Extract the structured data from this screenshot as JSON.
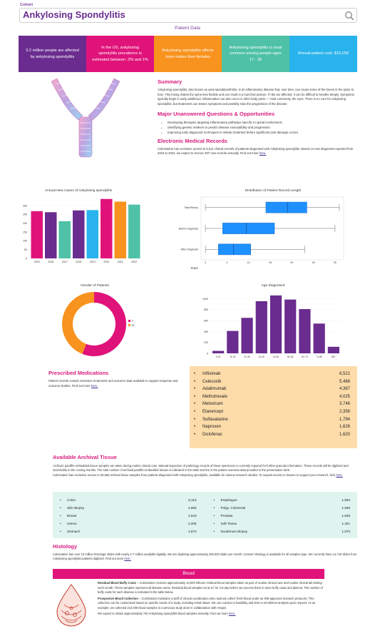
{
  "header": {
    "cohort_label": "Cohort",
    "title": "Ankylosing Spondylitis",
    "patient_data_link": "Patient Data"
  },
  "stats": [
    {
      "text": "3.2 million people are affected by ankylosing spondylitis",
      "color": "#6a2c8f"
    },
    {
      "text": "In the US, ankylosing spondylitis prevalence is estimated between .2% and 1%",
      "color": "#e0137a"
    },
    {
      "text": "Ankylosing spondylitis affects more males than females",
      "color": "#f7931e"
    },
    {
      "text": "Ankylosing spondylitis is most common among people ages 17 - 35",
      "color": "#4fc1a6"
    },
    {
      "text": "Annual patient cost: $10,250",
      "color": "#29b3ec"
    }
  ],
  "summary": {
    "heading": "Summary",
    "body": "Ankylosing spondylitis, also known as axial spondyloarthritis, is an inflammatory disease that, over time, can cause some of the bones in the spine to fuse. This fusing makes the spine less flexible and can result in a hunched posture. If ribs are affected, it can be difficult to breathe deeply. Symptoms typically begin in early adulthood. Inflammation can also occur in other body parts — most commonly, the eyes. There is no cure for ankylosing spondylitis, but treatments can lessen symptoms and possibly slow the progression of the disease."
  },
  "questions": {
    "heading": "Major Unanswered Questions & Opportunities",
    "items": [
      "Developing therapies targeting inflammatory pathways specific to spinal involvement.",
      "Identifying genetic markers to predict disease susceptibility and progression.",
      "Improving early diagnostic techniques to initiate treatment before significant joint damage occurs."
    ]
  },
  "emr": {
    "heading": "Electronic Medical Records",
    "body": "Culmination has exclusive access to 5,611 clinical records of patients diagnosed with Ankylosing spondylitis. Based on new diagnoses reported from 2015 to 2022, we expect to receive 307 new records annually. Find out more",
    "link": "here."
  },
  "colors": {
    "magenta": "#e0137a",
    "purple": "#6a2c8f",
    "orange": "#f7931e",
    "teal": "#4fc1a6",
    "blue": "#29b3ec",
    "box_blue": "#1e90ff"
  },
  "charts": {
    "annual": {
      "type": "bar",
      "title": "Annual New Cases of Ankylosing spondylitis",
      "categories": [
        "2015",
        "2016",
        "2017",
        "2018",
        "2019",
        "2020",
        "2021",
        "2022"
      ],
      "values": [
        268,
        262,
        211,
        272,
        274,
        337,
        322,
        305
      ],
      "colors": [
        "#e0137a",
        "#6a2c8f",
        "#4fc1a6",
        "#6a2c8f",
        "#29b3ec",
        "#e0137a",
        "#f7931e",
        "#4fc1a6"
      ],
      "yticks": [
        0,
        50,
        100,
        150,
        200,
        250,
        300
      ],
      "ylim": [
        0,
        340
      ]
    },
    "distribution": {
      "type": "box",
      "title": "Distribution of Patient Record Length",
      "xlabel": "Years",
      "rows": [
        {
          "label": "Total History",
          "whisker_low": 0,
          "q1": 14,
          "median": 19,
          "q3": 23.5,
          "whisker_high": 31
        },
        {
          "label": "Before Diagnosis",
          "whisker_low": 0,
          "q1": 4,
          "median": 9.5,
          "q3": 16,
          "whisker_high": 30
        },
        {
          "label": "After Diagnosis",
          "whisker_low": 0,
          "q1": 3,
          "median": 6.5,
          "q3": 10.5,
          "whisker_high": 23
        }
      ],
      "xticks": [
        0,
        5,
        10,
        15,
        20,
        25,
        30
      ],
      "xlim": [
        -1,
        32
      ]
    },
    "gender": {
      "type": "pie",
      "title": "Gender of Patients",
      "slices": [
        {
          "label": "F",
          "value": 56,
          "color": "#e0137a"
        },
        {
          "label": "M",
          "value": 44,
          "color": "#f7931e"
        }
      ]
    },
    "age": {
      "type": "bar",
      "title": "Age Diagnosed",
      "categories": [
        "0-10",
        "11-20",
        "21-30",
        "31-40",
        "41-50",
        "51-60",
        "61-70",
        "71-80",
        "80+"
      ],
      "values": [
        45,
        410,
        650,
        955,
        1060,
        985,
        810,
        545,
        120
      ],
      "yticks": [
        0,
        200,
        400,
        600,
        800,
        1000
      ],
      "ylim": [
        0,
        1150
      ],
      "color": "#6a2c8f"
    }
  },
  "medications": {
    "heading": "Prescribed Medications",
    "body": "Patient records contain extensive treatments and outcome data available to support response and outcome studies. Find out more",
    "link": "here.",
    "items": [
      {
        "name": "Infliximab",
        "count": "6,521"
      },
      {
        "name": "Celecoxib",
        "count": "5,468"
      },
      {
        "name": "Adalimumab",
        "count": "4,367"
      },
      {
        "name": "Methotrexate",
        "count": "4,025"
      },
      {
        "name": "Meloxicam",
        "count": "3,746"
      },
      {
        "name": "Etanercept",
        "count": "2,356"
      },
      {
        "name": "Sulfasalazine",
        "count": "1,794"
      },
      {
        "name": "Naproxen",
        "count": "1,626"
      },
      {
        "name": "Diclofenac",
        "count": "1,620"
      }
    ]
  },
  "archival": {
    "heading": "Available Archival Tissue",
    "body1": "Archival, paraffin-embedded tissue samples are taken during routine clinical care. Manual inspection of pathology records of these specimens is currently required for further granular information. These records will be digitized and searchable in the coming months. The total number of archival paraffin-embedded tissues is indicated in the table and the in the patient overview data provided in the presentation deck.",
    "body2": "Culmination has exclusive access to 35,656 archival tissue samples from patients diagnosed with Ankylosing spondylitis, available for various research studies. To request access to tissues to support your research, click",
    "link": "here.",
    "left": [
      {
        "name": "Colon",
        "count": "5,116"
      },
      {
        "name": "Skin Biopsy",
        "count": "4,856"
      },
      {
        "name": "Breast",
        "count": "2,543"
      },
      {
        "name": "Uterus",
        "count": "2,205"
      },
      {
        "name": "Stomach",
        "count": "1,873"
      }
    ],
    "right": [
      {
        "name": "Esophagus",
        "count": "1,583"
      },
      {
        "name": "Polyp, Colorectal",
        "count": "1,569"
      },
      {
        "name": "Prostate",
        "count": "1,535"
      },
      {
        "name": "Soft Tissue",
        "count": "1,401"
      },
      {
        "name": "Duodenum Biopsy",
        "count": "1,070"
      }
    ]
  },
  "histology": {
    "heading": "Histology",
    "body": "Culmination has over 10 million histologic slides with nearly 2.7 million available digitally. We are digitizing approximately 200,000 slides per month. Custom histology is available for all samples type. We currently have 14,742 slides from Ankylosing spondylitis patients digitized. Find out more",
    "link": "here."
  },
  "blood": {
    "heading": "Blood",
    "p1_bold": "Residual Blood Buffy Coats",
    "p1": " – Culmination receives approximately 10,000 leftover residual blood samples taken as part of routine clinical care and routine clinical lab testing each month. These samples represent all disease areas. Residual blood samples sit at 4C for 4-5 day before we process them to store buffy coats and plasma. The number of buffy coats for each disease is indicated in the table below.",
    "p2_bold": "Prospective Blood Collection",
    "p2": " – Culmination maintains a staff of clinical coordinators who routinely collect fresh blood under an IRB-approved research protocols. This collection can be customized based on specific needs of a study, including serial draws. We can conduct a feasibility and time to enrollment analysis upon request. As an example, we collected 213,000 blood samples in a previous study done in collaboration with Amgen.",
    "p3": "We expect to obtain approximately 740 Ankylosing spondylitis blood samples annually. Find out more",
    "link": "here."
  }
}
